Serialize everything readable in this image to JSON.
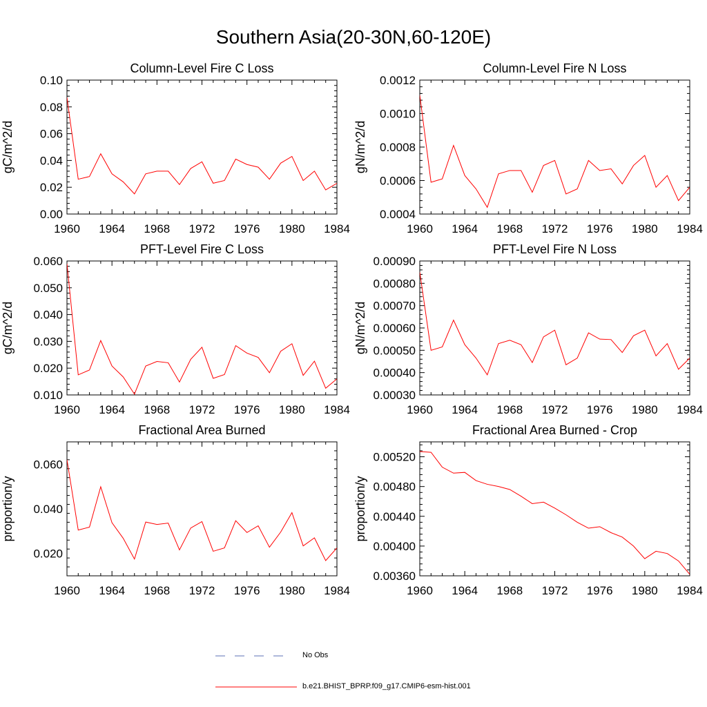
{
  "figure": {
    "title": "Southern Asia(20-30N,60-120E)"
  },
  "legend": {
    "obs_label": "No Obs",
    "model_label": "b.e21.BHIST_BPRP.f09_g17.CMIP6-esm-hist.001",
    "obs_color": "#5b6fb5",
    "model_color": "#ff0000"
  },
  "chart_data": [
    {
      "type": "line",
      "title": "Column-Level Fire C Loss",
      "ylabel": "gC/m^2/d",
      "xlim": [
        1960,
        1984
      ],
      "ylim": [
        0.0,
        0.1
      ],
      "xticks": [
        "1960",
        "1964",
        "1968",
        "1972",
        "1976",
        "1980",
        "1984"
      ],
      "yticks": [
        "0.00",
        "0.02",
        "0.04",
        "0.06",
        "0.08",
        "0.10"
      ],
      "x": [
        1960,
        1961,
        1962,
        1963,
        1964,
        1965,
        1966,
        1967,
        1968,
        1969,
        1970,
        1971,
        1972,
        1973,
        1974,
        1975,
        1976,
        1977,
        1978,
        1979,
        1980,
        1981,
        1982,
        1983,
        1984
      ],
      "series": [
        {
          "name": "b.e21.BHIST_BPRP.f09_g17.CMIP6-esm-hist.001",
          "color": "#ff0000",
          "values": [
            0.087,
            0.026,
            0.028,
            0.045,
            0.03,
            0.024,
            0.015,
            0.03,
            0.032,
            0.032,
            0.022,
            0.034,
            0.039,
            0.023,
            0.025,
            0.041,
            0.037,
            0.035,
            0.026,
            0.038,
            0.043,
            0.025,
            0.032,
            0.018,
            0.023
          ]
        }
      ]
    },
    {
      "type": "line",
      "title": "Column-Level Fire N Loss",
      "ylabel": "gN/m^2/d",
      "xlim": [
        1960,
        1984
      ],
      "ylim": [
        0.0004,
        0.0012
      ],
      "xticks": [
        "1960",
        "1964",
        "1968",
        "1972",
        "1976",
        "1980",
        "1984"
      ],
      "yticks": [
        "0.0004",
        "0.0006",
        "0.0008",
        "0.0010",
        "0.0012"
      ],
      "x": [
        1960,
        1961,
        1962,
        1963,
        1964,
        1965,
        1966,
        1967,
        1968,
        1969,
        1970,
        1971,
        1972,
        1973,
        1974,
        1975,
        1976,
        1977,
        1978,
        1979,
        1980,
        1981,
        1982,
        1983,
        1984
      ],
      "series": [
        {
          "name": "b.e21.BHIST_BPRP.f09_g17.CMIP6-esm-hist.001",
          "color": "#ff0000",
          "values": [
            0.00111,
            0.00059,
            0.00061,
            0.00081,
            0.00063,
            0.00055,
            0.00044,
            0.00064,
            0.00066,
            0.00066,
            0.00053,
            0.00069,
            0.00072,
            0.00052,
            0.00055,
            0.00072,
            0.00066,
            0.00067,
            0.00058,
            0.00069,
            0.00075,
            0.00056,
            0.00063,
            0.00048,
            0.00056
          ]
        }
      ]
    },
    {
      "type": "line",
      "title": "PFT-Level Fire C Loss",
      "ylabel": "gC/m^2/d",
      "xlim": [
        1960,
        1984
      ],
      "ylim": [
        0.01,
        0.06
      ],
      "xticks": [
        "1960",
        "1964",
        "1968",
        "1972",
        "1976",
        "1980",
        "1984"
      ],
      "yticks": [
        "0.010",
        "0.020",
        "0.030",
        "0.040",
        "0.050",
        "0.060"
      ],
      "x": [
        1960,
        1961,
        1962,
        1963,
        1964,
        1965,
        1966,
        1967,
        1968,
        1969,
        1970,
        1971,
        1972,
        1973,
        1974,
        1975,
        1976,
        1977,
        1978,
        1979,
        1980,
        1981,
        1982,
        1983,
        1984
      ],
      "series": [
        {
          "name": "b.e21.BHIST_BPRP.f09_g17.CMIP6-esm-hist.001",
          "color": "#ff0000",
          "values": [
            0.059,
            0.0175,
            0.0193,
            0.0303,
            0.0208,
            0.0167,
            0.0103,
            0.0208,
            0.0225,
            0.022,
            0.0148,
            0.0233,
            0.0278,
            0.0162,
            0.0176,
            0.0284,
            0.0256,
            0.024,
            0.0183,
            0.0263,
            0.0291,
            0.0173,
            0.0226,
            0.0125,
            0.016
          ]
        }
      ]
    },
    {
      "type": "line",
      "title": "PFT-Level Fire N Loss",
      "ylabel": "gN/m^2/d",
      "xlim": [
        1960,
        1984
      ],
      "ylim": [
        0.0003,
        0.0009
      ],
      "xticks": [
        "1960",
        "1964",
        "1968",
        "1972",
        "1976",
        "1980",
        "1984"
      ],
      "yticks": [
        "0.00030",
        "0.00040",
        "0.00050",
        "0.00060",
        "0.00070",
        "0.00080",
        "0.00090"
      ],
      "x": [
        1960,
        1961,
        1962,
        1963,
        1964,
        1965,
        1966,
        1967,
        1968,
        1969,
        1970,
        1971,
        1972,
        1973,
        1974,
        1975,
        1976,
        1977,
        1978,
        1979,
        1980,
        1981,
        1982,
        1983,
        1984
      ],
      "series": [
        {
          "name": "b.e21.BHIST_BPRP.f09_g17.CMIP6-esm-hist.001",
          "color": "#ff0000",
          "values": [
            0.00085,
            0.0005,
            0.000515,
            0.000635,
            0.000525,
            0.000465,
            0.00039,
            0.00053,
            0.000545,
            0.000525,
            0.000445,
            0.00056,
            0.00059,
            0.000435,
            0.000465,
            0.000578,
            0.00055,
            0.000548,
            0.00049,
            0.000565,
            0.00059,
            0.000475,
            0.00053,
            0.000415,
            0.000465
          ]
        }
      ]
    },
    {
      "type": "line",
      "title": "Fractional Area Burned",
      "ylabel": "proportion/y",
      "xlim": [
        1960,
        1984
      ],
      "ylim": [
        0.01,
        0.07
      ],
      "xticks": [
        "1960",
        "1964",
        "1968",
        "1972",
        "1976",
        "1980",
        "1984"
      ],
      "yticks": [
        "0.020",
        "0.040",
        "0.060"
      ],
      "ytick_values": [
        0.02,
        0.04,
        0.06
      ],
      "x": [
        1960,
        1961,
        1962,
        1963,
        1964,
        1965,
        1966,
        1967,
        1968,
        1969,
        1970,
        1971,
        1972,
        1973,
        1974,
        1975,
        1976,
        1977,
        1978,
        1979,
        1980,
        1981,
        1982,
        1983,
        1984
      ],
      "series": [
        {
          "name": "b.e21.BHIST_BPRP.f09_g17.CMIP6-esm-hist.001",
          "color": "#ff0000",
          "values": [
            0.062,
            0.0305,
            0.0318,
            0.0499,
            0.0338,
            0.0268,
            0.0175,
            0.0341,
            0.033,
            0.0336,
            0.0216,
            0.0314,
            0.0343,
            0.021,
            0.0225,
            0.0347,
            0.0294,
            0.0324,
            0.0228,
            0.0296,
            0.0383,
            0.0234,
            0.027,
            0.0168,
            0.0225
          ]
        }
      ]
    },
    {
      "type": "line",
      "title": "Fractional Area Burned - Crop",
      "ylabel": "proportion/y",
      "xlim": [
        1960,
        1984
      ],
      "ylim": [
        0.0036,
        0.0054
      ],
      "xticks": [
        "1960",
        "1964",
        "1968",
        "1972",
        "1976",
        "1980",
        "1984"
      ],
      "yticks": [
        "0.00360",
        "0.00400",
        "0.00440",
        "0.00480",
        "0.00520"
      ],
      "ytick_values": [
        0.0036,
        0.004,
        0.0044,
        0.0048,
        0.0052
      ],
      "x": [
        1960,
        1961,
        1962,
        1963,
        1964,
        1965,
        1966,
        1967,
        1968,
        1969,
        1970,
        1971,
        1972,
        1973,
        1974,
        1975,
        1976,
        1977,
        1978,
        1979,
        1980,
        1981,
        1982,
        1983,
        1984
      ],
      "series": [
        {
          "name": "b.e21.BHIST_BPRP.f09_g17.CMIP6-esm-hist.001",
          "color": "#ff0000",
          "values": [
            0.00527,
            0.00526,
            0.00506,
            0.00498,
            0.00499,
            0.00488,
            0.00483,
            0.0048,
            0.00476,
            0.00467,
            0.00457,
            0.00459,
            0.00451,
            0.00442,
            0.00432,
            0.00424,
            0.00426,
            0.00418,
            0.00412,
            0.004,
            0.00383,
            0.00393,
            0.0039,
            0.0038,
            0.00362
          ]
        }
      ]
    }
  ]
}
